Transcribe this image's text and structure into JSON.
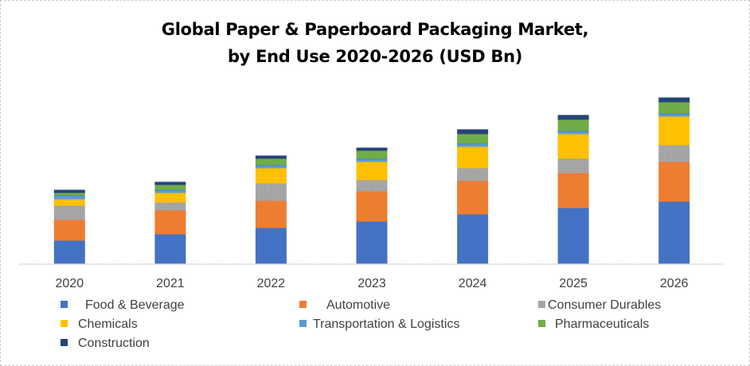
{
  "chart_data": {
    "type": "bar",
    "stacked": true,
    "title": "Global Paper & Paperboard Packaging Market,",
    "subtitle": "by End Use 2020-2026 (USD Bn)",
    "xlabel": "",
    "ylabel": "",
    "y_axis_visible": false,
    "value_units_note": "relative units estimated from bar heights (no y-axis shown)",
    "ylim": [
      0,
      220
    ],
    "grid": false,
    "legend_position": "bottom",
    "categories": [
      "2020",
      "2021",
      "2022",
      "2023",
      "2024",
      "2025",
      "2026"
    ],
    "series": [
      {
        "name": "Food & Beverage",
        "color": "#4472C4",
        "values": [
          29,
          37,
          45,
          53,
          62,
          70,
          78
        ]
      },
      {
        "name": "Automotive",
        "color": "#ED7D31",
        "values": [
          26,
          30,
          34,
          38,
          42,
          44,
          50
        ]
      },
      {
        "name": "Consumer Durables",
        "color": "#A5A5A5",
        "values": [
          18,
          10,
          22,
          14,
          16,
          18,
          21
        ]
      },
      {
        "name": "Chemicals",
        "color": "#FFC000",
        "values": [
          8,
          12,
          19,
          23,
          27,
          31,
          36
        ]
      },
      {
        "name": "Transportation & Logistics",
        "color": "#5B9BD5",
        "values": [
          5,
          4,
          4,
          4,
          4,
          4,
          4
        ]
      },
      {
        "name": "Pharmaceuticals",
        "color": "#70AD47",
        "values": [
          3,
          6,
          8,
          10,
          12,
          14,
          14
        ]
      },
      {
        "name": "Construction",
        "color": "#264478",
        "values": [
          4,
          4,
          4,
          4,
          6,
          6,
          6
        ]
      }
    ]
  },
  "legend": {
    "rows": [
      [
        "Food & Beverage",
        "Automotive",
        "Consumer Durables"
      ],
      [
        "Chemicals",
        "Transportation & Logistics",
        "Pharmaceuticals"
      ],
      [
        "Construction"
      ]
    ]
  }
}
